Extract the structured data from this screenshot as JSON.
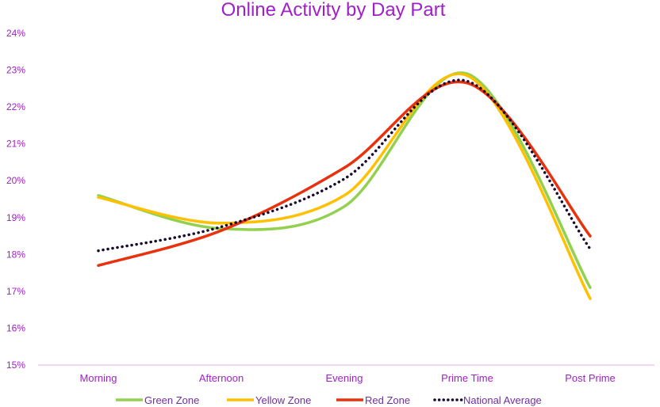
{
  "chart_data": {
    "type": "line",
    "title": "Online Activity by Day Part",
    "xlabel": "",
    "ylabel": "",
    "categories": [
      "Morning",
      "Afternoon",
      "Evening",
      "Prime Time",
      "Post Prime"
    ],
    "ylim": [
      0.15,
      0.24
    ],
    "y_ticks": [
      "15%",
      "16%",
      "17%",
      "18%",
      "19%",
      "20%",
      "21%",
      "22%",
      "23%",
      "24%"
    ],
    "grid": false,
    "legend_position": "bottom",
    "series": [
      {
        "name": "Green Zone",
        "values": [
          0.196,
          0.187,
          0.193,
          0.229,
          0.171
        ],
        "color": "#92d050",
        "style": "solid"
      },
      {
        "name": "Yellow Zone",
        "values": [
          0.1955,
          0.1885,
          0.196,
          0.2285,
          0.168
        ],
        "color": "#ffc000",
        "style": "solid"
      },
      {
        "name": "Red Zone",
        "values": [
          0.177,
          0.1865,
          0.2035,
          0.2265,
          0.185
        ],
        "color": "#e8320e",
        "style": "solid"
      },
      {
        "name": "National Average",
        "values": [
          0.181,
          0.1875,
          0.2005,
          0.227,
          0.1815
        ],
        "color": "#1a0a2e",
        "style": "dotted"
      }
    ]
  },
  "colors": {
    "title": "#a020c8",
    "axis_text": "#a020c8",
    "axis_line": "#e0b0e8"
  }
}
